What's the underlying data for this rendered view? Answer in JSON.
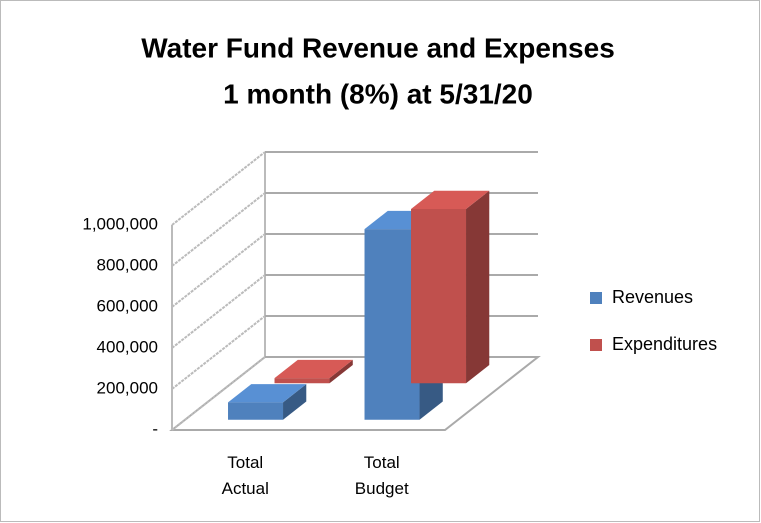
{
  "chart_data": {
    "type": "bar3d",
    "title": "Water Fund Revenue and Expenses",
    "subtitle": "1 month (8%) at 5/31/20",
    "categories": [
      "Total Actual",
      "Total Budget"
    ],
    "series": [
      {
        "name": "Revenues",
        "color": "#4f81bd",
        "values": [
          85000,
          930000
        ]
      },
      {
        "name": "Expenditures",
        "color": "#c0504d",
        "values": [
          25000,
          850000
        ]
      }
    ],
    "ylim": [
      0,
      1000000
    ],
    "yticks": [
      {
        "value": 0,
        "label": "-"
      },
      {
        "value": 200000,
        "label": "200,000"
      },
      {
        "value": 400000,
        "label": "400,000"
      },
      {
        "value": 600000,
        "label": "600,000"
      },
      {
        "value": 800000,
        "label": "800,000"
      },
      {
        "value": 1000000,
        "label": "1,000,000"
      }
    ],
    "grid": true,
    "legend": "right"
  }
}
